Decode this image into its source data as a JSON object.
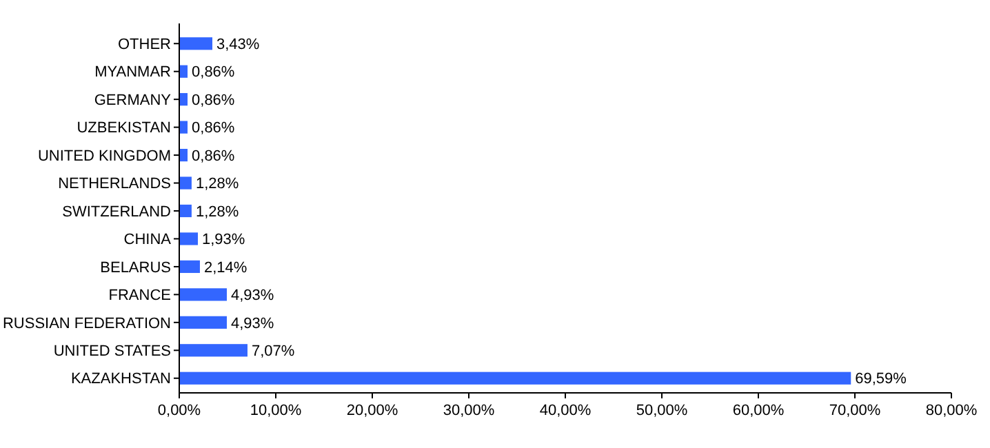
{
  "chart_data": {
    "type": "bar",
    "orientation": "horizontal",
    "categories": [
      "OTHER",
      "MYANMAR",
      "GERMANY",
      "UZBEKISTAN",
      "UNITED KINGDOM",
      "NETHERLANDS",
      "SWITZERLAND",
      "CHINA",
      "BELARUS",
      "FRANCE",
      "RUSSIAN FEDERATION",
      "UNITED STATES",
      "KAZAKHSTAN"
    ],
    "values": [
      3.43,
      0.86,
      0.86,
      0.86,
      0.86,
      1.28,
      1.28,
      1.93,
      2.14,
      4.93,
      4.93,
      7.07,
      69.59
    ],
    "value_labels": [
      "3,43%",
      "0,86%",
      "0,86%",
      "0,86%",
      "0,86%",
      "1,28%",
      "1,28%",
      "1,93%",
      "2,14%",
      "4,93%",
      "4,93%",
      "7,07%",
      "69,59%"
    ],
    "color": "#3366ff",
    "xlim": [
      0,
      80
    ],
    "xticks": [
      {
        "value": 0,
        "label": "0,00%"
      },
      {
        "value": 10,
        "label": "10,00%"
      },
      {
        "value": 20,
        "label": "20,00%"
      },
      {
        "value": 30,
        "label": "30,00%"
      },
      {
        "value": 40,
        "label": "40,00%"
      },
      {
        "value": 50,
        "label": "50,00%"
      },
      {
        "value": 60,
        "label": "60,00%"
      },
      {
        "value": 70,
        "label": "70,00%"
      },
      {
        "value": 80,
        "label": "80,00%"
      }
    ],
    "grid": false
  }
}
